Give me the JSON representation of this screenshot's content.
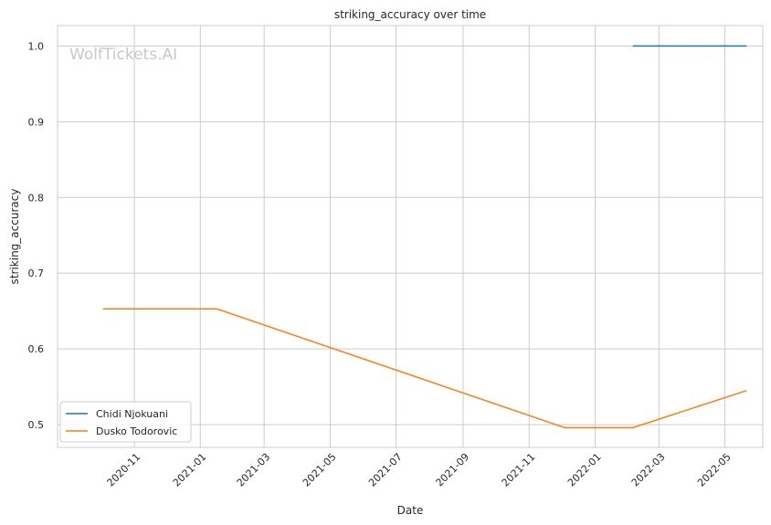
{
  "chart_data": {
    "type": "line",
    "title": "striking_accuracy over time",
    "xlabel": "Date",
    "ylabel": "striking_accuracy",
    "watermark": "WolfTickets.AI",
    "x_axis_type": "date",
    "xlim": [
      "2020-08-22",
      "2022-06-05"
    ],
    "ylim": [
      0.47,
      1.027
    ],
    "x_ticks": [
      "2020-11",
      "2021-01",
      "2021-03",
      "2021-05",
      "2021-07",
      "2021-09",
      "2021-11",
      "2022-01",
      "2022-03",
      "2022-05"
    ],
    "y_ticks": [
      "0.5",
      "0.6",
      "0.7",
      "0.8",
      "0.9",
      "1.0"
    ],
    "grid": true,
    "legend_position": "bottom-left",
    "series": [
      {
        "name": "Chidi Njokuani",
        "color": "#1f77b4",
        "points": [
          {
            "x": "2022-02-05",
            "y": 1.0
          },
          {
            "x": "2022-05-21",
            "y": 1.0
          }
        ]
      },
      {
        "name": "Dusko Todorovic",
        "color": "#ff7f0e",
        "points": [
          {
            "x": "2020-10-03",
            "y": 0.653
          },
          {
            "x": "2021-01-16",
            "y": 0.653
          },
          {
            "x": "2021-12-04",
            "y": 0.496
          },
          {
            "x": "2022-02-05",
            "y": 0.496
          },
          {
            "x": "2022-05-21",
            "y": 0.545
          }
        ]
      }
    ]
  }
}
